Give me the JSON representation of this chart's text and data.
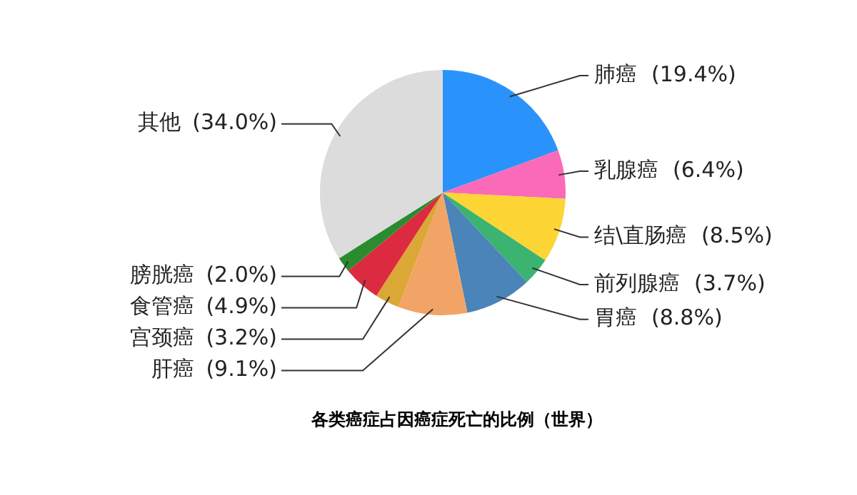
{
  "chart_data": {
    "type": "pie",
    "title": "各类癌症占因癌症死亡的比例（世界）",
    "categories": [
      "肺癌",
      "乳腺癌",
      "结\\直肠癌",
      "前列腺癌",
      "胃癌",
      "肝癌",
      "宫颈癌",
      "食管癌",
      "膀胱癌",
      "其他"
    ],
    "values": [
      19.4,
      6.4,
      8.5,
      3.7,
      8.8,
      9.1,
      3.2,
      4.9,
      2.0,
      34.0
    ],
    "colors": [
      "#2a93fb",
      "#fa6ab8",
      "#fdd535",
      "#3cb371",
      "#4a84b8",
      "#f2a466",
      "#dba736",
      "#dc2a40",
      "#2a8c2e",
      "#dcdcdc"
    ],
    "value_labels": [
      "(19.4%)",
      "(6.4%)",
      "(8.5%)",
      "(3.7%)",
      "(8.8%)",
      "(9.1%)",
      "(3.2%)",
      "(4.9%)",
      "(2.0%)",
      "(34.0%)"
    ],
    "legend": false
  }
}
